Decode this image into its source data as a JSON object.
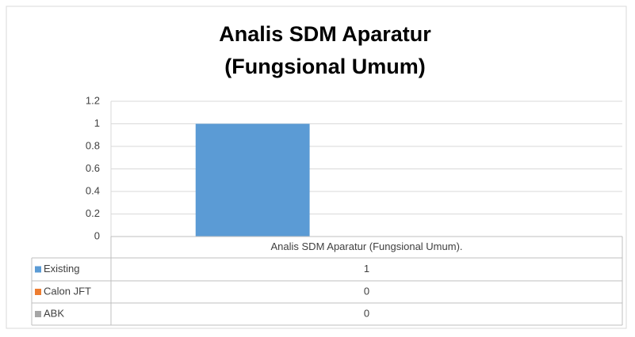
{
  "chart_data": {
    "type": "bar",
    "title": [
      "Analis SDM Aparatur",
      "(Fungsional Umum)"
    ],
    "categories": [
      "Analis SDM Aparatur (Fungsional Umum)."
    ],
    "series": [
      {
        "name": "Existing",
        "color": "#5b9bd5",
        "values": [
          1
        ]
      },
      {
        "name": "Calon JFT",
        "color": "#ed7d31",
        "values": [
          0
        ]
      },
      {
        "name": "ABK",
        "color": "#a5a5a5",
        "values": [
          0
        ]
      }
    ],
    "ylim": [
      0,
      1.2
    ],
    "yticks": [
      0,
      0.2,
      0.4,
      0.6,
      0.8,
      1,
      1.2
    ],
    "grid": true,
    "data_table": true
  }
}
